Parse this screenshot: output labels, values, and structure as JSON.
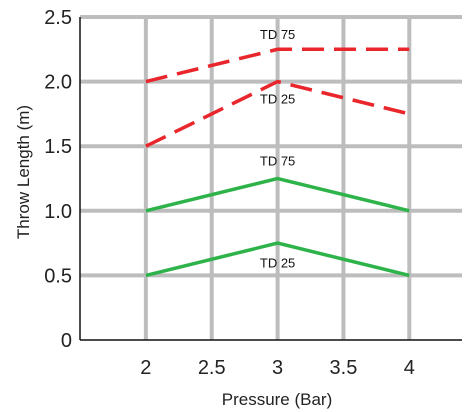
{
  "chart_data": {
    "type": "line",
    "xlabel": "Pressure (Bar)",
    "ylabel": "Throw Length (m)",
    "xlim": [
      1.5,
      4.4
    ],
    "ylim": [
      0,
      2.5
    ],
    "x_ticks": [
      "2",
      "2.5",
      "3",
      "3.5",
      "4"
    ],
    "y_ticks": [
      "0",
      "0.5",
      "1.0",
      "1.5",
      "2.0",
      "2.5"
    ],
    "grid": true,
    "series": [
      {
        "x": [
          2,
          3,
          4
        ],
        "y": [
          2.0,
          2.25,
          2.25
        ],
        "color": "#e8262c",
        "style": "dashed"
      },
      {
        "x": [
          2,
          3,
          4
        ],
        "y": [
          1.5,
          2.0,
          1.75
        ],
        "color": "#e8262c",
        "style": "dashed"
      },
      {
        "x": [
          2,
          3,
          4
        ],
        "y": [
          1.0,
          1.25,
          1.0
        ],
        "color": "#2db34a",
        "style": "solid"
      },
      {
        "x": [
          2,
          3,
          4
        ],
        "y": [
          0.5,
          0.75,
          0.5
        ],
        "color": "#2db34a",
        "style": "solid"
      }
    ],
    "annotations": [
      {
        "text": "TD 75",
        "x": 3,
        "y": 2.33
      },
      {
        "text": "TD 25",
        "x": 3,
        "y": 1.83
      },
      {
        "text": "TD 75",
        "x": 3,
        "y": 1.35
      },
      {
        "text": "TD 25",
        "x": 3,
        "y": 0.56
      }
    ],
    "colors": {
      "grid": "#bdbdbd",
      "axis": "#111111"
    }
  }
}
